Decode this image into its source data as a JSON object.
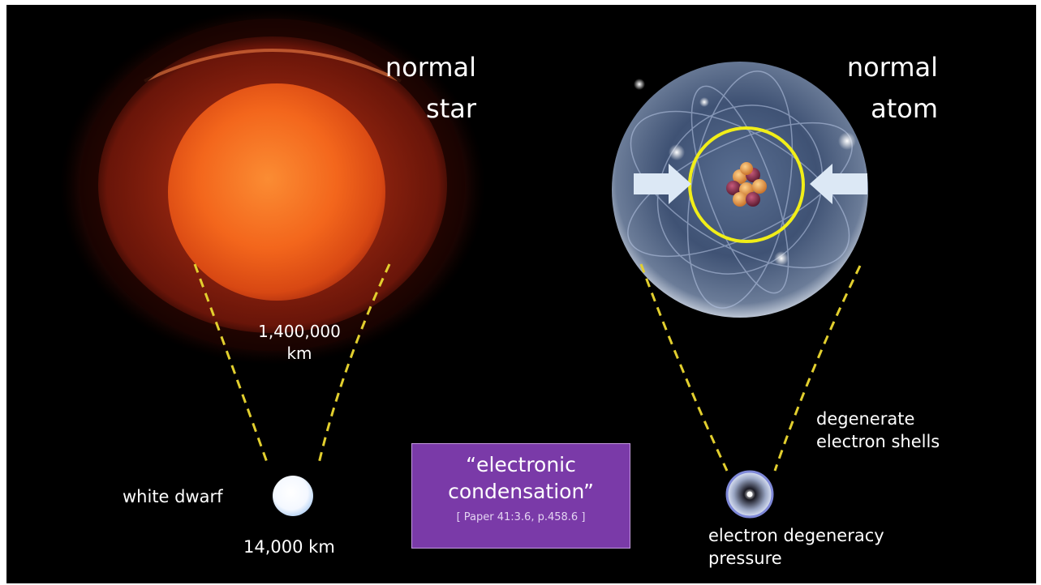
{
  "star": {
    "title_line1": "normal",
    "title_line2": "star",
    "size_line1": "1,400,000",
    "size_line2": "km"
  },
  "white_dwarf": {
    "label": "white dwarf",
    "size": "14,000 km"
  },
  "atom": {
    "title_line1": "normal",
    "title_line2": "atom"
  },
  "degenerate": {
    "label_line1": "degenerate",
    "label_line2": "electron shells",
    "pressure_line1": "electron degeneracy",
    "pressure_line2": "pressure"
  },
  "callout": {
    "quote_line1": "“electronic",
    "quote_line2": "condensation”",
    "reference": "[ Paper 41:3.6,  p.458.6 ]"
  },
  "colors": {
    "background": "#000000",
    "star_core": "#f2661c",
    "dashed_line": "#e2cf2e",
    "nucleus_ring": "#f1ee18",
    "callout_fill": "#7a3aa8"
  }
}
